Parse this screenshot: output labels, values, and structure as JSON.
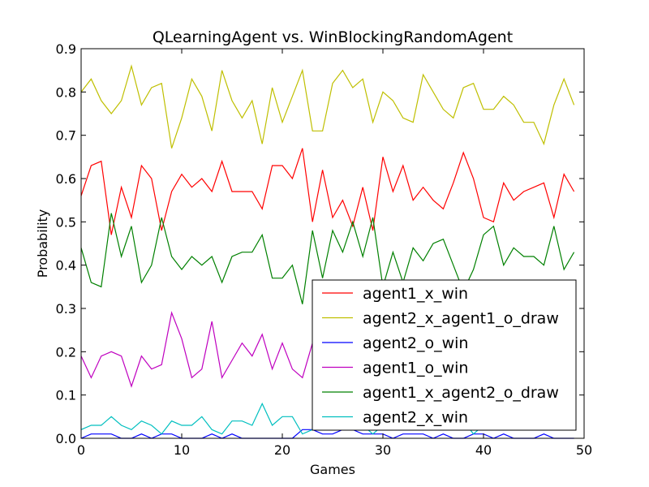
{
  "chart_data": {
    "type": "line",
    "title": "QLearningAgent vs. WinBlockingRandomAgent",
    "xlabel": "Games",
    "ylabel": "Probability",
    "xlim": [
      0,
      50
    ],
    "ylim": [
      0,
      0.9
    ],
    "x_ticks": [
      "0",
      "10",
      "20",
      "30",
      "40",
      "50"
    ],
    "y_ticks": [
      "0.0",
      "0.1",
      "0.2",
      "0.3",
      "0.4",
      "0.5",
      "0.6",
      "0.7",
      "0.8",
      "0.9"
    ],
    "grid": false,
    "legend_position": "lower-right",
    "x": [
      0,
      1,
      2,
      3,
      4,
      5,
      6,
      7,
      8,
      9,
      10,
      11,
      12,
      13,
      14,
      15,
      16,
      17,
      18,
      19,
      20,
      21,
      22,
      23,
      24,
      25,
      26,
      27,
      28,
      29,
      30,
      31,
      32,
      33,
      34,
      35,
      36,
      37,
      38,
      39,
      40,
      41,
      42,
      43,
      44,
      45,
      46,
      47,
      48,
      49
    ],
    "series": [
      {
        "name": "agent1_x_win",
        "color": "#ff0000",
        "values": [
          0.56,
          0.63,
          0.64,
          0.47,
          0.58,
          0.51,
          0.63,
          0.6,
          0.48,
          0.57,
          0.61,
          0.58,
          0.6,
          0.57,
          0.64,
          0.57,
          0.57,
          0.57,
          0.53,
          0.63,
          0.63,
          0.6,
          0.67,
          0.5,
          0.62,
          0.51,
          0.55,
          0.49,
          0.58,
          0.48,
          0.65,
          0.57,
          0.63,
          0.55,
          0.58,
          0.55,
          0.53,
          0.59,
          0.66,
          0.6,
          0.51,
          0.5,
          0.59,
          0.55,
          0.57,
          0.58,
          0.59,
          0.51,
          0.61,
          0.57
        ]
      },
      {
        "name": "agent2_x_agent1_o_draw",
        "color": "#bfbf00",
        "values": [
          0.8,
          0.83,
          0.78,
          0.75,
          0.78,
          0.86,
          0.77,
          0.81,
          0.82,
          0.67,
          0.74,
          0.83,
          0.79,
          0.71,
          0.85,
          0.78,
          0.74,
          0.78,
          0.68,
          0.81,
          0.73,
          0.79,
          0.85,
          0.71,
          0.71,
          0.82,
          0.85,
          0.81,
          0.83,
          0.73,
          0.8,
          0.78,
          0.74,
          0.73,
          0.84,
          0.8,
          0.76,
          0.74,
          0.81,
          0.82,
          0.76,
          0.76,
          0.79,
          0.77,
          0.73,
          0.73,
          0.68,
          0.77,
          0.83,
          0.77
        ]
      },
      {
        "name": "agent2_o_win",
        "color": "#0000ff",
        "values": [
          0.0,
          0.01,
          0.01,
          0.01,
          0.0,
          0.0,
          0.01,
          0.0,
          0.01,
          0.01,
          0.0,
          0.0,
          0.0,
          0.01,
          0.0,
          0.01,
          0.0,
          0.0,
          0.0,
          0.0,
          0.0,
          0.0,
          0.02,
          0.02,
          0.01,
          0.01,
          0.02,
          0.02,
          0.01,
          0.01,
          0.01,
          0.0,
          0.01,
          0.01,
          0.01,
          0.0,
          0.01,
          0.0,
          0.0,
          0.01,
          0.01,
          0.0,
          0.01,
          0.0,
          0.0,
          0.0,
          0.01,
          0.0,
          0.0,
          0.0
        ]
      },
      {
        "name": "agent1_o_win",
        "color": "#bf00bf",
        "values": [
          0.19,
          0.14,
          0.19,
          0.2,
          0.19,
          0.12,
          0.19,
          0.16,
          0.17,
          0.29,
          0.23,
          0.14,
          0.16,
          0.27,
          0.14,
          0.18,
          0.22,
          0.19,
          0.24,
          0.16,
          0.22,
          0.16,
          0.14,
          0.22,
          0.18,
          0.2,
          0.17,
          0.19,
          0.16,
          0.21,
          0.18,
          0.2,
          0.19,
          0.22,
          0.17,
          0.19,
          0.2,
          0.18,
          0.19,
          0.21,
          0.17,
          0.19,
          0.18,
          0.2,
          0.19,
          0.17,
          0.18,
          0.2,
          0.19,
          0.18
        ]
      },
      {
        "name": "agent1_x_agent2_o_draw",
        "color": "#008000",
        "values": [
          0.44,
          0.36,
          0.35,
          0.52,
          0.42,
          0.49,
          0.36,
          0.4,
          0.51,
          0.42,
          0.39,
          0.42,
          0.4,
          0.42,
          0.36,
          0.42,
          0.43,
          0.43,
          0.47,
          0.37,
          0.37,
          0.4,
          0.31,
          0.48,
          0.37,
          0.48,
          0.43,
          0.5,
          0.42,
          0.51,
          0.35,
          0.43,
          0.36,
          0.44,
          0.41,
          0.45,
          0.46,
          0.4,
          0.34,
          0.39,
          0.47,
          0.49,
          0.4,
          0.44,
          0.42,
          0.42,
          0.4,
          0.49,
          0.39,
          0.43
        ]
      },
      {
        "name": "agent2_x_win",
        "color": "#00bfbf",
        "values": [
          0.02,
          0.03,
          0.03,
          0.05,
          0.03,
          0.02,
          0.04,
          0.03,
          0.01,
          0.04,
          0.03,
          0.03,
          0.05,
          0.02,
          0.01,
          0.04,
          0.04,
          0.03,
          0.08,
          0.03,
          0.05,
          0.05,
          0.01,
          0.02,
          0.02,
          0.03,
          0.03,
          0.02,
          0.03,
          0.01,
          0.03,
          0.02,
          0.03,
          0.02,
          0.04,
          0.03,
          0.02,
          0.03,
          0.04,
          0.01,
          0.03,
          0.02,
          0.03,
          0.02,
          0.02,
          0.03,
          0.03,
          0.02,
          0.02,
          0.03
        ]
      }
    ]
  }
}
